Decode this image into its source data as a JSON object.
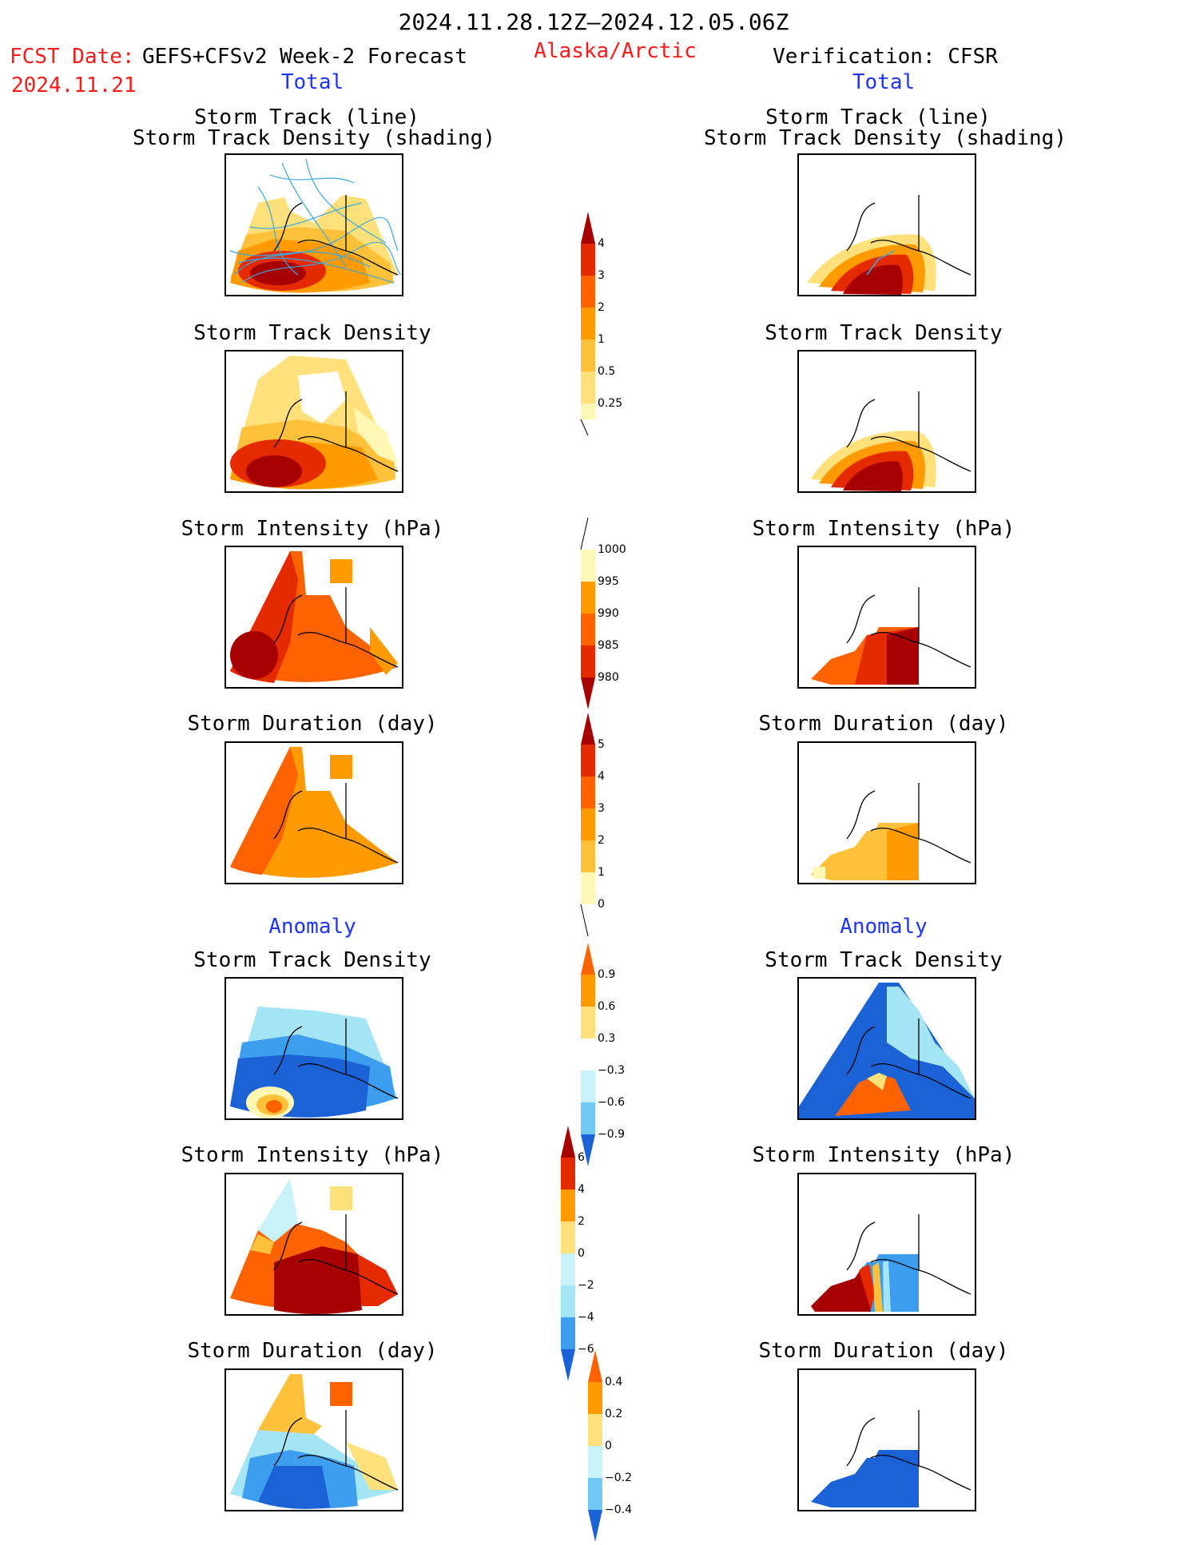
{
  "header": {
    "period": "2024.11.28.12Z–2024.12.05.06Z",
    "fcst_label": "FCST Date:",
    "fcst_model": "GEFS+CFSv2 Week-2 Forecast",
    "fcst_date": "2024.11.21",
    "region": "Alaska/Arctic",
    "verification": "Verification: CFSR"
  },
  "sections": {
    "total": "Total",
    "anomaly": "Anomaly"
  },
  "panel_titles": {
    "track_line": "Storm Track (line)",
    "track_shading": "Storm Track Density (shading)",
    "density": "Storm Track Density",
    "intensity": "Storm Intensity (hPa)",
    "duration": "Storm Duration (day)"
  },
  "colors": {
    "warm": [
      "#fff7b3",
      "#ffe07a",
      "#ffc03a",
      "#ff9a00",
      "#ff6200",
      "#e52a00",
      "#a60000"
    ],
    "cool": [
      "#c9f1f8",
      "#a3e4f5",
      "#6fc9f4",
      "#3d9ef0",
      "#1a62d6"
    ],
    "track_line": "#3aa8e0"
  },
  "chart_data": [
    {
      "type": "heatmap",
      "panel": "forecast-total-track",
      "colorbar_ticks": [
        "0.25",
        "0.5",
        "1",
        "2",
        "3",
        "4"
      ]
    },
    {
      "type": "heatmap",
      "panel": "forecast-total-density",
      "colorbar_ticks": [
        "0.25",
        "0.5",
        "1",
        "2",
        "3",
        "4"
      ]
    },
    {
      "type": "heatmap",
      "panel": "forecast-total-intensity",
      "colorbar_ticks": [
        "1000",
        "995",
        "990",
        "985",
        "980"
      ]
    },
    {
      "type": "heatmap",
      "panel": "forecast-total-duration",
      "colorbar_ticks": [
        "5",
        "4",
        "3",
        "2",
        "1",
        "0"
      ]
    },
    {
      "type": "heatmap",
      "panel": "forecast-anomaly-density",
      "colorbar_ticks": [
        "0.9",
        "0.6",
        "0.3",
        "−0.3",
        "−0.6",
        "−0.9"
      ]
    },
    {
      "type": "heatmap",
      "panel": "forecast-anomaly-intensity",
      "colorbar_ticks": [
        "6",
        "4",
        "2",
        "0",
        "−2",
        "−4",
        "−6"
      ]
    },
    {
      "type": "heatmap",
      "panel": "forecast-anomaly-duration",
      "colorbar_ticks": [
        "0.4",
        "0.2",
        "0",
        "−0.2",
        "−0.4"
      ]
    }
  ]
}
